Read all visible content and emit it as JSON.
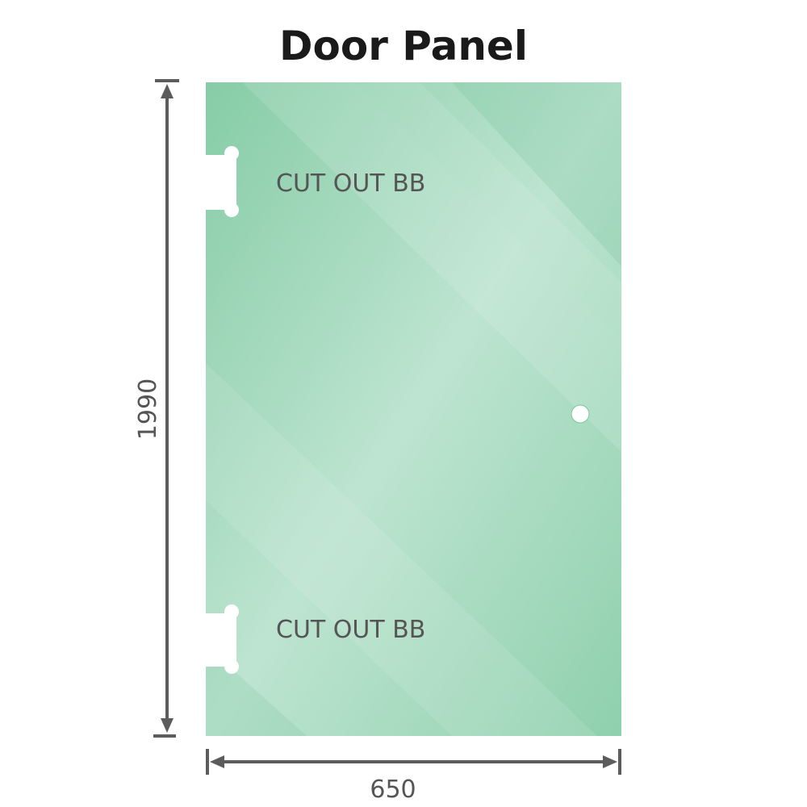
{
  "title": "Door Panel",
  "dimensions": {
    "height": "1990",
    "width": "650"
  },
  "cutouts": [
    {
      "label": "CUT OUT BB"
    },
    {
      "label": "CUT OUT BB"
    }
  ],
  "colors": {
    "glass": "#8ccfab",
    "glass_light": "#bde4d0",
    "dimension_line": "#5c5c5c"
  }
}
